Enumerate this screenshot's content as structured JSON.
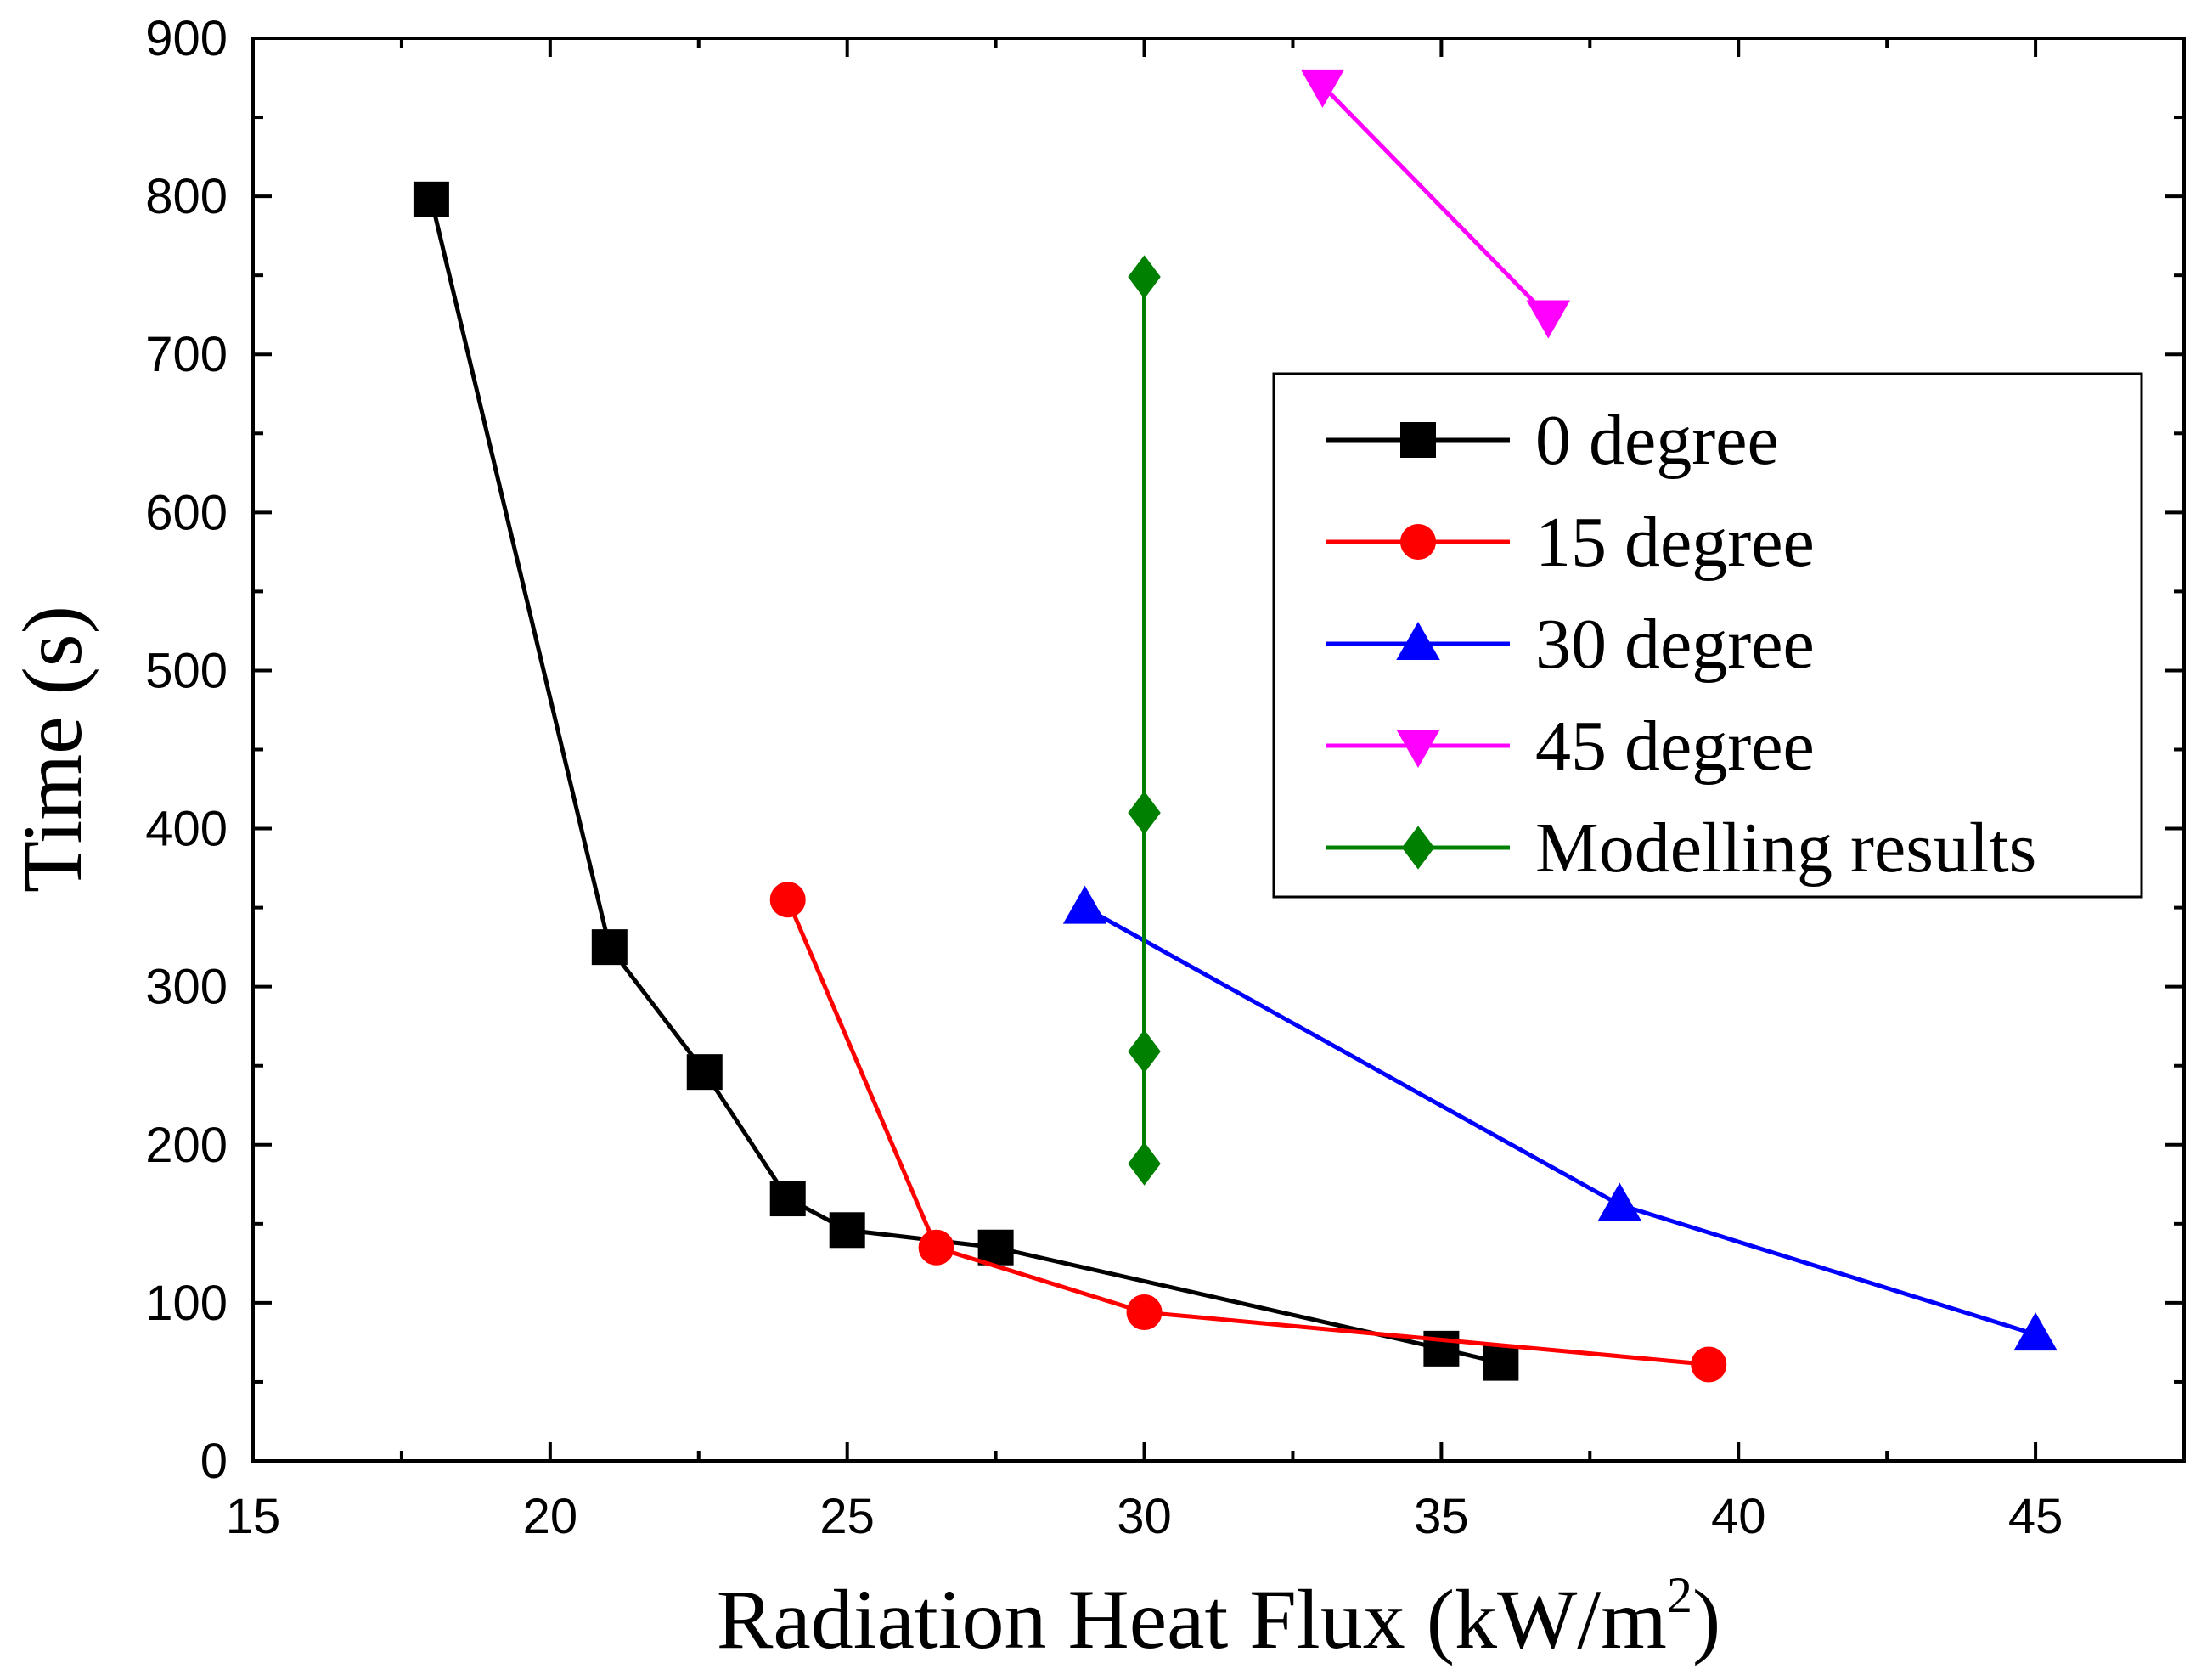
{
  "chart_data": {
    "type": "line",
    "xlabel_main": "Radiation Heat Flux (kW/m",
    "xlabel_sup": "2",
    "xlabel_close": ")",
    "ylabel": "Time (s)",
    "xlim": [
      15,
      47.5
    ],
    "ylim": [
      0,
      900
    ],
    "xticks": [
      15,
      20,
      25,
      30,
      35,
      40,
      45
    ],
    "yticks": [
      0,
      100,
      200,
      300,
      400,
      500,
      600,
      700,
      800,
      900
    ],
    "legend_position": "upper-right",
    "series": [
      {
        "name": "0 degree",
        "color": "#000000",
        "marker": "square",
        "points": [
          [
            18,
            798
          ],
          [
            21,
            325
          ],
          [
            22.6,
            246
          ],
          [
            24,
            166
          ],
          [
            25,
            146
          ],
          [
            27.5,
            135
          ],
          [
            35,
            71
          ],
          [
            36,
            62
          ]
        ]
      },
      {
        "name": "15 degree",
        "color": "#ff0000",
        "marker": "circle",
        "points": [
          [
            24,
            355
          ],
          [
            26.5,
            135
          ],
          [
            30,
            94
          ],
          [
            39.5,
            61
          ]
        ]
      },
      {
        "name": "30 degree",
        "color": "#0000ff",
        "marker": "triangle-up",
        "points": [
          [
            29,
            350
          ],
          [
            38,
            162
          ],
          [
            45,
            80
          ]
        ]
      },
      {
        "name": "45 degree",
        "color": "#ff00ff",
        "marker": "triangle-down",
        "points": [
          [
            33,
            870
          ],
          [
            36.8,
            724
          ]
        ]
      },
      {
        "name": "Modelling results",
        "color": "#008000",
        "marker": "diamond",
        "points": [
          [
            30,
            749
          ],
          [
            30,
            410
          ],
          [
            30,
            259
          ],
          [
            30,
            188
          ]
        ]
      }
    ]
  }
}
